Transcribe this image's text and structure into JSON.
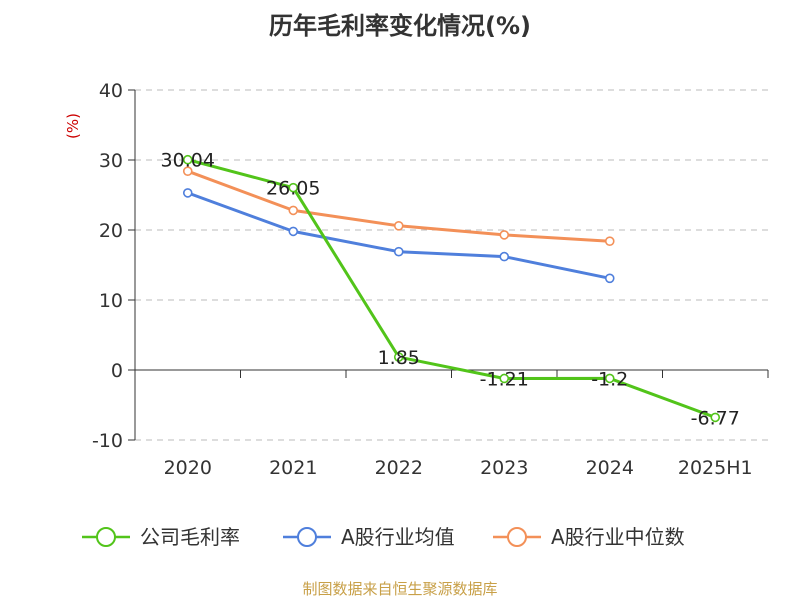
{
  "chart_data": {
    "type": "line",
    "title": "历年毛利率变化情况(%)",
    "ylabel": "(%)",
    "categories": [
      "2020",
      "2021",
      "2022",
      "2023",
      "2024",
      "2025H1"
    ],
    "ylim": [
      -10,
      40
    ],
    "yticks": [
      40,
      30,
      20,
      10,
      0,
      -10
    ],
    "grid": true,
    "legend_position": "bottom",
    "series": [
      {
        "name": "公司毛利率",
        "color": "#52c41a",
        "values": [
          30.04,
          26.05,
          1.85,
          -1.21,
          -1.2,
          -6.77
        ],
        "labels": [
          "30.04",
          "26.05",
          "1.85",
          "-1.21",
          "-1.2",
          "-6.77"
        ]
      },
      {
        "name": "A股行业均值",
        "color": "#4f7fdc",
        "values": [
          25.3,
          19.8,
          16.9,
          16.2,
          13.1,
          null
        ]
      },
      {
        "name": "A股行业中位数",
        "color": "#f39058",
        "values": [
          28.4,
          22.8,
          20.6,
          19.3,
          18.4,
          null
        ]
      }
    ]
  },
  "footer": {
    "source": "制图数据来自恒生聚源数据库"
  }
}
